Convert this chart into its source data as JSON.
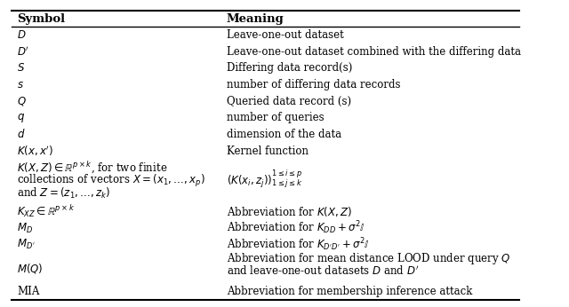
{
  "title_symbol": "Symbol",
  "title_meaning": "Meaning",
  "rows": [
    {
      "symbol": "$D$",
      "meaning": "Leave-one-out dataset",
      "symbol_lines": 1,
      "meaning_lines": 1
    },
    {
      "symbol": "$D'$",
      "meaning": "Leave-one-out dataset combined with the differing data",
      "symbol_lines": 1,
      "meaning_lines": 1
    },
    {
      "symbol": "$S$",
      "meaning": "Differing data record(s)",
      "symbol_lines": 1,
      "meaning_lines": 1
    },
    {
      "symbol": "$s$",
      "meaning": "number of differing data records",
      "symbol_lines": 1,
      "meaning_lines": 1
    },
    {
      "symbol": "$Q$",
      "meaning": "Queried data record (s)",
      "symbol_lines": 1,
      "meaning_lines": 1
    },
    {
      "symbol": "$q$",
      "meaning": "number of queries",
      "symbol_lines": 1,
      "meaning_lines": 1
    },
    {
      "symbol": "$d$",
      "meaning": "dimension of the data",
      "symbol_lines": 1,
      "meaning_lines": 1
    },
    {
      "symbol": "$K(x, x')$",
      "meaning": "Kernel function",
      "symbol_lines": 1,
      "meaning_lines": 1
    },
    {
      "symbol": "$K(X, Z) \\in \\mathbb{R}^{p \\times k}$, for two finite\ncollections of vectors $X = (x_1, \\ldots, x_p)$\nand $Z = (z_1, \\ldots, z_k)$",
      "meaning": "$(K(x_i, z_j))_{\\substack{1 \\leq i \\leq p \\\\ 1 \\leq j \\leq k}}$",
      "symbol_lines": 3,
      "meaning_lines": 2
    },
    {
      "symbol": "$K_{XZ} \\in \\mathbb{R}^{p \\times k}$",
      "meaning": "Abbreviation for $K(X, Z)$",
      "symbol_lines": 1,
      "meaning_lines": 1
    },
    {
      "symbol": "$M_D$",
      "meaning": "Abbreviation for $K_{DD} + \\sigma^2 \\mathbb{I}$",
      "symbol_lines": 1,
      "meaning_lines": 1
    },
    {
      "symbol": "$M_{D'}$",
      "meaning": "Abbreviation for $K_{D'D'} + \\sigma^2 \\mathbb{I}$",
      "symbol_lines": 1,
      "meaning_lines": 1
    },
    {
      "symbol": "$M(Q)$",
      "meaning": "Abbreviation for mean distance LOOD under query $Q$\nand leave-one-out datasets $D$ and $D'$",
      "symbol_lines": 1,
      "meaning_lines": 2
    },
    {
      "symbol": "MIA",
      "meaning": "Abbreviation for membership inference attack",
      "symbol_lines": 1,
      "meaning_lines": 1
    }
  ],
  "col_split": 0.42,
  "fig_bg": "#ffffff",
  "text_color": "#000000",
  "header_fontsize": 9.5,
  "body_fontsize": 8.5,
  "line_color": "#000000"
}
